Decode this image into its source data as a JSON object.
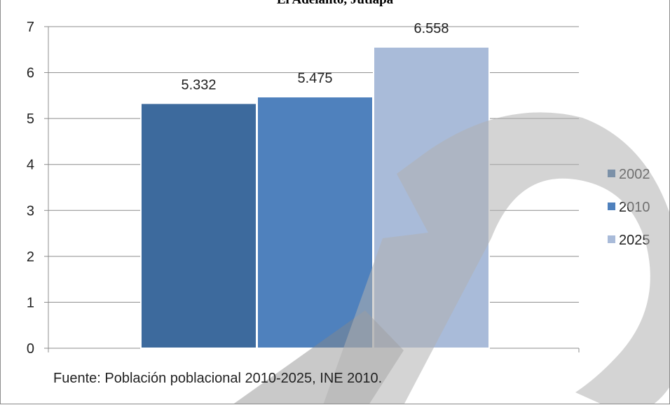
{
  "chart_data": {
    "type": "bar",
    "title": "El Adelanto, Jutiapa",
    "xlabel": "",
    "ylabel": "",
    "ylim": [
      0,
      7
    ],
    "yticks": [
      0,
      1,
      2,
      3,
      4,
      5,
      6,
      7
    ],
    "grid": true,
    "legend_position": "right",
    "series": [
      {
        "name": "2002",
        "value": 5.332,
        "label": "5.332",
        "color": "#3d6a9d"
      },
      {
        "name": "2010",
        "value": 5.475,
        "label": "5.475",
        "color": "#4f81bd"
      },
      {
        "name": "2025",
        "value": 6.558,
        "label": "6.558",
        "color": "#a9bbd9"
      }
    ]
  },
  "source_note": "Fuente: Población poblacional 2010-2025, INE 2010.",
  "watermark_icon": "letter-p-watermark-icon"
}
